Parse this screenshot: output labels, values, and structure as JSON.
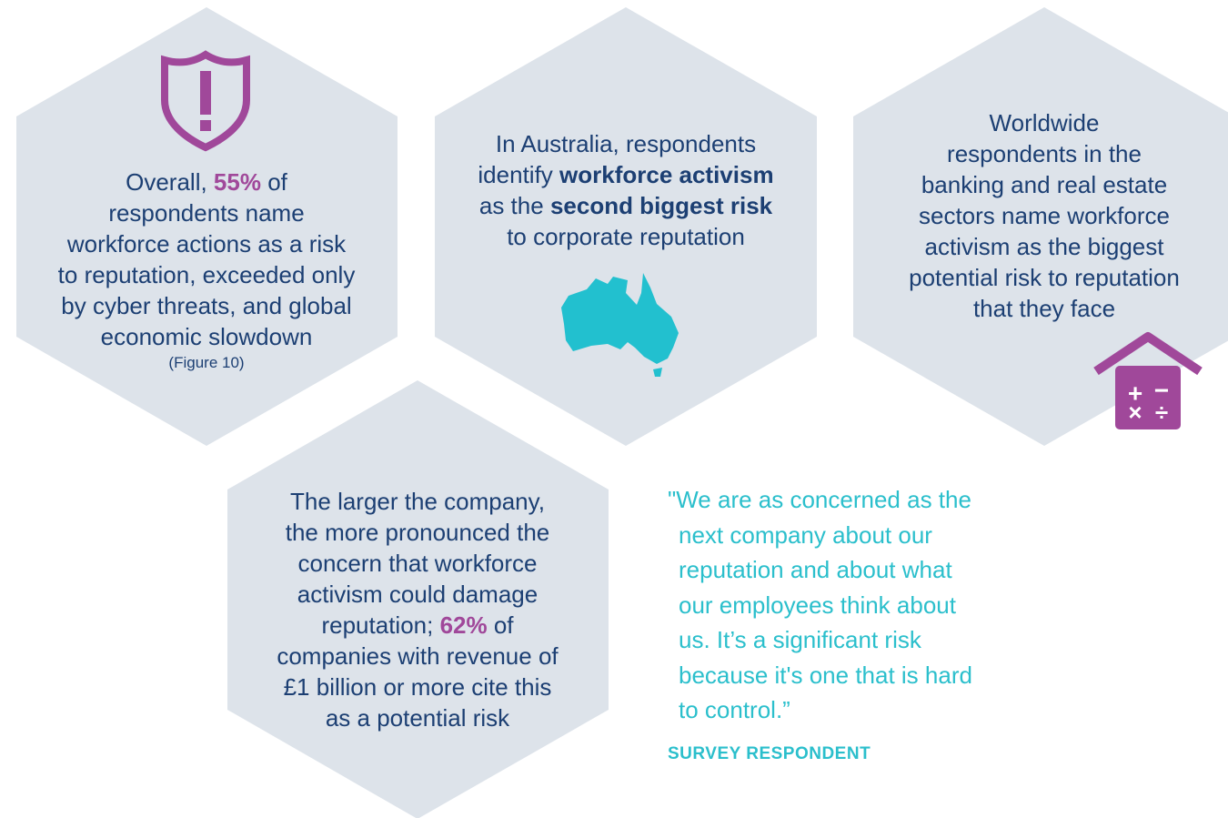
{
  "hexagons": [
    {
      "emphasis_color": "#a0489a",
      "lines": [
        [
          "Overall, ",
          {
            "text": "55%",
            "emphasis": true
          },
          " of"
        ],
        [
          "respondents name"
        ],
        [
          "workforce actions as a risk"
        ],
        [
          "to reputation, exceeded only"
        ],
        [
          "by cyber threats, and global"
        ],
        [
          "economic slowdown"
        ]
      ],
      "note": "(Figure 10)"
    },
    {
      "emphasis_color": "#1c3f73",
      "lines": [
        [
          "In Australia, respondents"
        ],
        [
          "identify ",
          {
            "text": "workforce activism",
            "emphasis": true
          }
        ],
        [
          "as the ",
          {
            "text": "second biggest risk",
            "emphasis": true
          }
        ],
        [
          "to corporate reputation"
        ]
      ]
    },
    {
      "emphasis_color": "#1c3f73",
      "lines": [
        [
          "Worldwide"
        ],
        [
          "respondents in the"
        ],
        [
          "banking and real estate"
        ],
        [
          "sectors name workforce"
        ],
        [
          "activism as the biggest"
        ],
        [
          "potential risk to reputation"
        ],
        [
          "that they face"
        ]
      ]
    },
    {
      "emphasis_color": "#a0489a",
      "lines": [
        [
          "The larger the company,"
        ],
        [
          "the more pronounced the"
        ],
        [
          "concern that workforce"
        ],
        [
          "activism could damage"
        ],
        [
          "reputation; ",
          {
            "text": "62%",
            "emphasis": true
          },
          " of"
        ],
        [
          "companies with revenue of"
        ],
        [
          "£1 billion or more cite this"
        ],
        [
          "as a potential risk"
        ]
      ]
    }
  ],
  "quote": {
    "lines": [
      "\"We are as concerned as the",
      "next company about our",
      "reputation and about what",
      "our employees think about",
      "us. It’s a significant risk",
      "because it's one that is hard",
      "to control.”"
    ],
    "attribution": "SURVEY RESPONDENT"
  }
}
